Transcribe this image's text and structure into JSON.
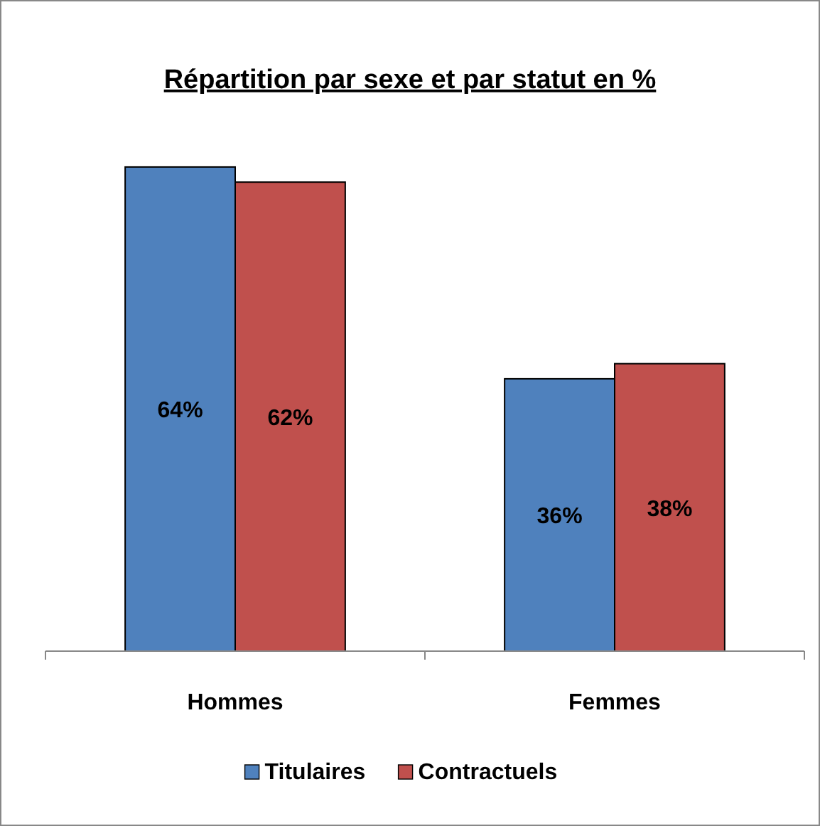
{
  "chart_data": {
    "type": "bar",
    "title": "Répartition par sexe et par statut en %",
    "categories": [
      "Hommes",
      "Femmes"
    ],
    "series": [
      {
        "name": "Titulaires",
        "color": "#4f81bd",
        "values": [
          64,
          36
        ],
        "value_labels": [
          "64%",
          "36%"
        ]
      },
      {
        "name": "Contractuels",
        "color": "#c0504d",
        "values": [
          62,
          38
        ],
        "value_labels": [
          "62%",
          "38%"
        ]
      }
    ],
    "legend": "bottom",
    "grid": false
  }
}
